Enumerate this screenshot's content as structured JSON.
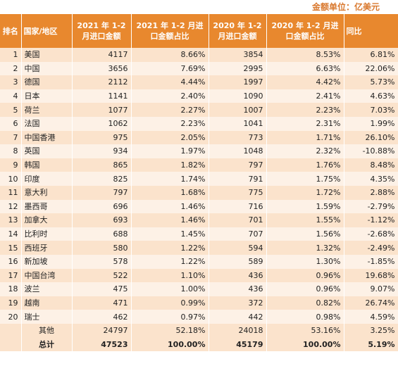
{
  "unit_note": "金额单位：亿美元",
  "headers": {
    "rank": "排名",
    "country": "国家/地区",
    "v2021": "2021 年 1-2 月进口金额",
    "s2021": "2021 年 1-2 月进口金额占比",
    "v2020": "2020 年 1-2 月进口金额",
    "s2020": "2020 年 1-2 月进口金额占比",
    "yoy": "同比"
  },
  "rows": [
    {
      "rank": "1",
      "country": "美国",
      "v2021": "4117",
      "s2021": "8.66%",
      "v2020": "3854",
      "s2020": "8.53%",
      "yoy": "6.81%"
    },
    {
      "rank": "2",
      "country": "中国",
      "v2021": "3656",
      "s2021": "7.69%",
      "v2020": "2995",
      "s2020": "6.63%",
      "yoy": "22.06%"
    },
    {
      "rank": "3",
      "country": "德国",
      "v2021": "2112",
      "s2021": "4.44%",
      "v2020": "1997",
      "s2020": "4.42%",
      "yoy": "5.73%"
    },
    {
      "rank": "4",
      "country": "日本",
      "v2021": "1141",
      "s2021": "2.40%",
      "v2020": "1090",
      "s2020": "2.41%",
      "yoy": "4.63%"
    },
    {
      "rank": "5",
      "country": "荷兰",
      "v2021": "1077",
      "s2021": "2.27%",
      "v2020": "1007",
      "s2020": "2.23%",
      "yoy": "7.03%"
    },
    {
      "rank": "6",
      "country": "法国",
      "v2021": "1062",
      "s2021": "2.23%",
      "v2020": "1041",
      "s2020": "2.31%",
      "yoy": "1.99%"
    },
    {
      "rank": "7",
      "country": "中国香港",
      "v2021": "975",
      "s2021": "2.05%",
      "v2020": "773",
      "s2020": "1.71%",
      "yoy": "26.10%"
    },
    {
      "rank": "8",
      "country": "英国",
      "v2021": "934",
      "s2021": "1.97%",
      "v2020": "1048",
      "s2020": "2.32%",
      "yoy": "-10.88%"
    },
    {
      "rank": "9",
      "country": "韩国",
      "v2021": "865",
      "s2021": "1.82%",
      "v2020": "797",
      "s2020": "1.76%",
      "yoy": "8.48%"
    },
    {
      "rank": "10",
      "country": "印度",
      "v2021": "825",
      "s2021": "1.74%",
      "v2020": "791",
      "s2020": "1.75%",
      "yoy": "4.35%"
    },
    {
      "rank": "11",
      "country": "意大利",
      "v2021": "797",
      "s2021": "1.68%",
      "v2020": "775",
      "s2020": "1.72%",
      "yoy": "2.88%"
    },
    {
      "rank": "12",
      "country": "墨西哥",
      "v2021": "696",
      "s2021": "1.46%",
      "v2020": "716",
      "s2020": "1.59%",
      "yoy": "-2.79%"
    },
    {
      "rank": "13",
      "country": "加拿大",
      "v2021": "693",
      "s2021": "1.46%",
      "v2020": "701",
      "s2020": "1.55%",
      "yoy": "-1.12%"
    },
    {
      "rank": "14",
      "country": "比利时",
      "v2021": "688",
      "s2021": "1.45%",
      "v2020": "707",
      "s2020": "1.56%",
      "yoy": "-2.68%"
    },
    {
      "rank": "15",
      "country": "西班牙",
      "v2021": "580",
      "s2021": "1.22%",
      "v2020": "594",
      "s2020": "1.32%",
      "yoy": "-2.49%"
    },
    {
      "rank": "16",
      "country": "新加坡",
      "v2021": "578",
      "s2021": "1.22%",
      "v2020": "589",
      "s2020": "1.30%",
      "yoy": "-1.85%"
    },
    {
      "rank": "17",
      "country": "中国台湾",
      "v2021": "522",
      "s2021": "1.10%",
      "v2020": "436",
      "s2020": "0.96%",
      "yoy": "19.68%"
    },
    {
      "rank": "18",
      "country": "波兰",
      "v2021": "475",
      "s2021": "1.00%",
      "v2020": "436",
      "s2020": "0.96%",
      "yoy": "9.07%"
    },
    {
      "rank": "19",
      "country": "越南",
      "v2021": "471",
      "s2021": "0.99%",
      "v2020": "372",
      "s2020": "0.82%",
      "yoy": "26.74%"
    },
    {
      "rank": "20",
      "country": "瑞士",
      "v2021": "462",
      "s2021": "0.97%",
      "v2020": "442",
      "s2020": "0.98%",
      "yoy": "4.59%"
    },
    {
      "rank": "",
      "country": "其他",
      "v2021": "24797",
      "s2021": "52.18%",
      "v2020": "24018",
      "s2020": "53.16%",
      "yoy": "3.25%"
    },
    {
      "rank": "",
      "country": "总计",
      "v2021": "47523",
      "s2021": "100.00%",
      "v2020": "45179",
      "s2020": "100.00%",
      "yoy": "5.19%"
    }
  ],
  "colors": {
    "header_bg": "#e8882e",
    "row_odd": "#fbe3cc",
    "row_even": "#fdf1e6",
    "unit_note": "#d9782d"
  }
}
